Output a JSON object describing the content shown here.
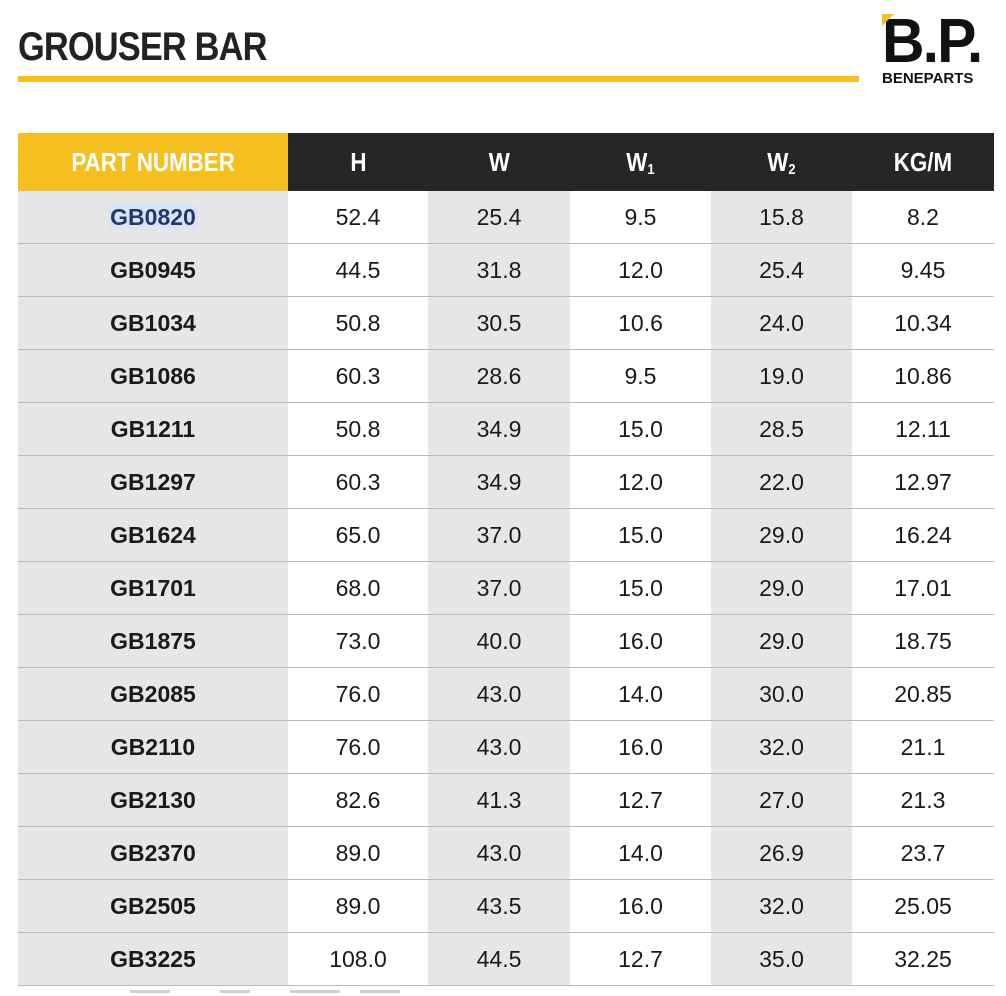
{
  "title": "GROUSER BAR",
  "logo": {
    "mark": "B.P.",
    "sub": "BENEPARTS"
  },
  "colors": {
    "accent": "#f5bf1f",
    "header": "#262626",
    "shade": "#e6e6e6"
  },
  "table": {
    "headers": [
      {
        "main": "PART NUMBER",
        "sub": ""
      },
      {
        "main": "H",
        "sub": ""
      },
      {
        "main": "W",
        "sub": ""
      },
      {
        "main": "W",
        "sub": "1"
      },
      {
        "main": "W",
        "sub": "2"
      },
      {
        "main": "KG/M",
        "sub": ""
      }
    ],
    "rows": [
      [
        "GB0820",
        "52.4",
        "25.4",
        "9.5",
        "15.8",
        "8.2"
      ],
      [
        "GB0945",
        "44.5",
        "31.8",
        "12.0",
        "25.4",
        "9.45"
      ],
      [
        "GB1034",
        "50.8",
        "30.5",
        "10.6",
        "24.0",
        "10.34"
      ],
      [
        "GB1086",
        "60.3",
        "28.6",
        "9.5",
        "19.0",
        "10.86"
      ],
      [
        "GB1211",
        "50.8",
        "34.9",
        "15.0",
        "28.5",
        "12.11"
      ],
      [
        "GB1297",
        "60.3",
        "34.9",
        "12.0",
        "22.0",
        "12.97"
      ],
      [
        "GB1624",
        "65.0",
        "37.0",
        "15.0",
        "29.0",
        "16.24"
      ],
      [
        "GB1701",
        "68.0",
        "37.0",
        "15.0",
        "29.0",
        "17.01"
      ],
      [
        "GB1875",
        "73.0",
        "40.0",
        "16.0",
        "29.0",
        "18.75"
      ],
      [
        "GB2085",
        "76.0",
        "43.0",
        "14.0",
        "30.0",
        "20.85"
      ],
      [
        "GB2110",
        "76.0",
        "43.0",
        "16.0",
        "32.0",
        "21.1"
      ],
      [
        "GB2130",
        "82.6",
        "41.3",
        "12.7",
        "27.0",
        "21.3"
      ],
      [
        "GB2370",
        "89.0",
        "43.0",
        "14.0",
        "26.9",
        "23.7"
      ],
      [
        "GB2505",
        "89.0",
        "43.5",
        "16.0",
        "32.0",
        "25.05"
      ],
      [
        "GB3225",
        "108.0",
        "44.5",
        "12.7",
        "35.0",
        "32.25"
      ]
    ]
  }
}
